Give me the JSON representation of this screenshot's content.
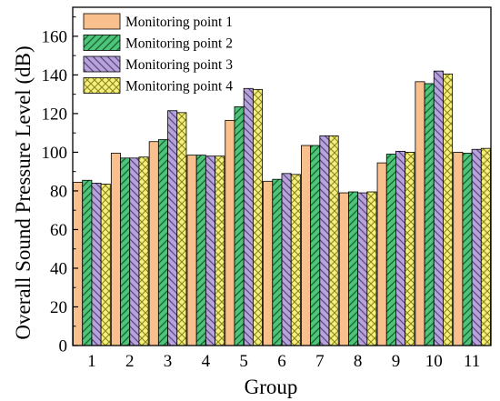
{
  "chart_data": {
    "type": "bar",
    "xlabel": "Group",
    "ylabel": "Overall Sound Pressure Level (dB)",
    "ylim": [
      0,
      175
    ],
    "yticks": [
      0,
      20,
      40,
      60,
      80,
      100,
      120,
      140,
      160
    ],
    "categories": [
      "1",
      "2",
      "3",
      "4",
      "5",
      "6",
      "7",
      "8",
      "9",
      "10",
      "11"
    ],
    "legend_position": "top-left",
    "grid": false,
    "series": [
      {
        "name": "Monitoring point 1",
        "color": "#F9C08E",
        "pattern": "solid",
        "values": [
          84.5,
          99.5,
          105.5,
          98.5,
          116.5,
          85.0,
          103.5,
          79.0,
          94.5,
          136.5,
          100.0
        ]
      },
      {
        "name": "Monitoring point 2",
        "color": "#4CC47A",
        "pattern": "hatch-forward",
        "values": [
          85.5,
          97.0,
          106.5,
          98.5,
          123.5,
          86.0,
          103.5,
          79.5,
          99.0,
          135.5,
          99.5
        ]
      },
      {
        "name": "Monitoring point 3",
        "color": "#B7A2DB",
        "pattern": "hatch-back",
        "values": [
          84.0,
          97.0,
          121.5,
          98.0,
          133.0,
          89.0,
          108.5,
          79.0,
          100.5,
          142.0,
          101.5
        ]
      },
      {
        "name": "Monitoring point 4",
        "color": "#F5F07A",
        "pattern": "crosshatch",
        "values": [
          83.5,
          97.5,
          120.5,
          98.0,
          132.5,
          88.5,
          108.5,
          79.5,
          100.0,
          140.5,
          102.0
        ]
      }
    ]
  }
}
